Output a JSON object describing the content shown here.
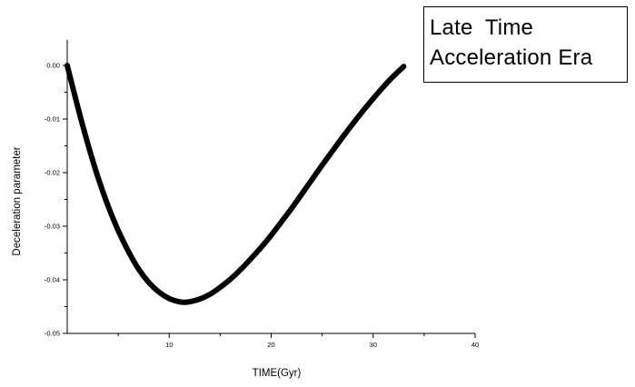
{
  "chart_data": {
    "type": "line",
    "title": "",
    "xlabel": "TIME(Gyr)",
    "ylabel": "Deceleration parameter",
    "xlim": [
      0,
      40
    ],
    "ylim": [
      -0.05,
      0.0
    ],
    "x_ticks": [
      {
        "value": 10,
        "label": "10"
      },
      {
        "value": 20,
        "label": "20"
      },
      {
        "value": 30,
        "label": "30"
      },
      {
        "value": 40,
        "label": "40"
      }
    ],
    "y_ticks": [
      {
        "value": 0.0,
        "label": "0.00"
      },
      {
        "value": -0.01,
        "label": "-0.01"
      },
      {
        "value": -0.02,
        "label": "-0.02"
      },
      {
        "value": -0.03,
        "label": "-0.03"
      },
      {
        "value": -0.04,
        "label": "-0.04"
      },
      {
        "value": -0.05,
        "label": "-0.05"
      }
    ],
    "grid": false,
    "series": [
      {
        "color": "#000000",
        "x": [
          0,
          1,
          2,
          3,
          4,
          5,
          6,
          7,
          8,
          9,
          10,
          11,
          11.5,
          12,
          13,
          14,
          15,
          16,
          17,
          18,
          19,
          20,
          21,
          22,
          23,
          24,
          25,
          26,
          27,
          28,
          29,
          30,
          31,
          32,
          33
        ],
        "y": [
          0.0,
          -0.0075,
          -0.0145,
          -0.0208,
          -0.0262,
          -0.0308,
          -0.0347,
          -0.038,
          -0.0405,
          -0.0423,
          -0.0435,
          -0.0441,
          -0.0442,
          -0.0441,
          -0.0436,
          -0.0427,
          -0.0414,
          -0.0399,
          -0.0381,
          -0.0361,
          -0.034,
          -0.0317,
          -0.0292,
          -0.0267,
          -0.024,
          -0.0213,
          -0.0186,
          -0.016,
          -0.0134,
          -0.0109,
          -0.0085,
          -0.0062,
          -0.004,
          -0.002,
          -0.0002
        ]
      }
    ]
  },
  "annotation": {
    "line1": "Late  Time",
    "line2": "Acceleration Era"
  }
}
